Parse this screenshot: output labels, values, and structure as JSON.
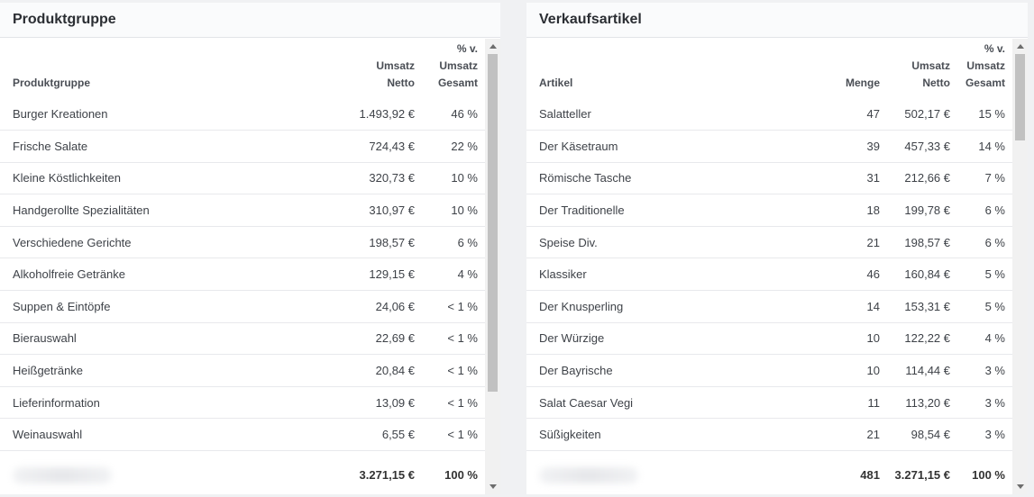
{
  "left_panel": {
    "title": "Produktgruppe",
    "headers": {
      "name": "Produktgruppe",
      "umsatz_netto": "Umsatz\nNetto",
      "percent": "% v.\nUmsatz\nGesamt"
    },
    "rows": [
      {
        "name": "Burger Kreationen",
        "umsatz": "1.493,92 €",
        "percent": "46 %"
      },
      {
        "name": "Frische Salate",
        "umsatz": "724,43 €",
        "percent": "22 %"
      },
      {
        "name": "Kleine Köstlichkeiten",
        "umsatz": "320,73 €",
        "percent": "10 %"
      },
      {
        "name": "Handgerollte Spezialitäten",
        "umsatz": "310,97 €",
        "percent": "10 %"
      },
      {
        "name": "Verschiedene Gerichte",
        "umsatz": "198,57 €",
        "percent": "6 %"
      },
      {
        "name": "Alkoholfreie Getränke",
        "umsatz": "129,15 €",
        "percent": "4 %"
      },
      {
        "name": "Suppen & Eintöpfe",
        "umsatz": "24,06 €",
        "percent": "< 1 %"
      },
      {
        "name": "Bierauswahl",
        "umsatz": "22,69 €",
        "percent": "< 1 %"
      },
      {
        "name": "Heißgetränke",
        "umsatz": "20,84 €",
        "percent": "< 1 %"
      },
      {
        "name": "Lieferinformation",
        "umsatz": "13,09 €",
        "percent": "< 1 %"
      },
      {
        "name": "Weinauswahl",
        "umsatz": "6,55 €",
        "percent": "< 1 %"
      }
    ],
    "total": {
      "umsatz": "3.271,15 €",
      "percent": "100 %"
    }
  },
  "right_panel": {
    "title": "Verkaufsartikel",
    "headers": {
      "name": "Artikel",
      "menge": "Menge",
      "umsatz_netto": "Umsatz\nNetto",
      "percent": "% v.\nUmsatz\nGesamt"
    },
    "rows": [
      {
        "name": "Salatteller",
        "menge": "47",
        "umsatz": "502,17 €",
        "percent": "15 %"
      },
      {
        "name": "Der Käsetraum",
        "menge": "39",
        "umsatz": "457,33 €",
        "percent": "14 %"
      },
      {
        "name": "Römische Tasche",
        "menge": "31",
        "umsatz": "212,66 €",
        "percent": "7 %"
      },
      {
        "name": "Der Traditionelle",
        "menge": "18",
        "umsatz": "199,78 €",
        "percent": "6 %"
      },
      {
        "name": "Speise Div.",
        "menge": "21",
        "umsatz": "198,57 €",
        "percent": "6 %"
      },
      {
        "name": "Klassiker",
        "menge": "46",
        "umsatz": "160,84 €",
        "percent": "5 %"
      },
      {
        "name": "Der Knusperling",
        "menge": "14",
        "umsatz": "153,31 €",
        "percent": "5 %"
      },
      {
        "name": "Der Würzige",
        "menge": "10",
        "umsatz": "122,22 €",
        "percent": "4 %"
      },
      {
        "name": "Der Bayrische",
        "menge": "10",
        "umsatz": "114,44 €",
        "percent": "3 %"
      },
      {
        "name": "Salat Caesar Vegi",
        "menge": "11",
        "umsatz": "113,20 €",
        "percent": "3 %"
      },
      {
        "name": "Süßigkeiten",
        "menge": "21",
        "umsatz": "98,54 €",
        "percent": "3 %"
      }
    ],
    "total": {
      "menge": "481",
      "umsatz": "3.271,15 €",
      "percent": "100 %"
    }
  }
}
